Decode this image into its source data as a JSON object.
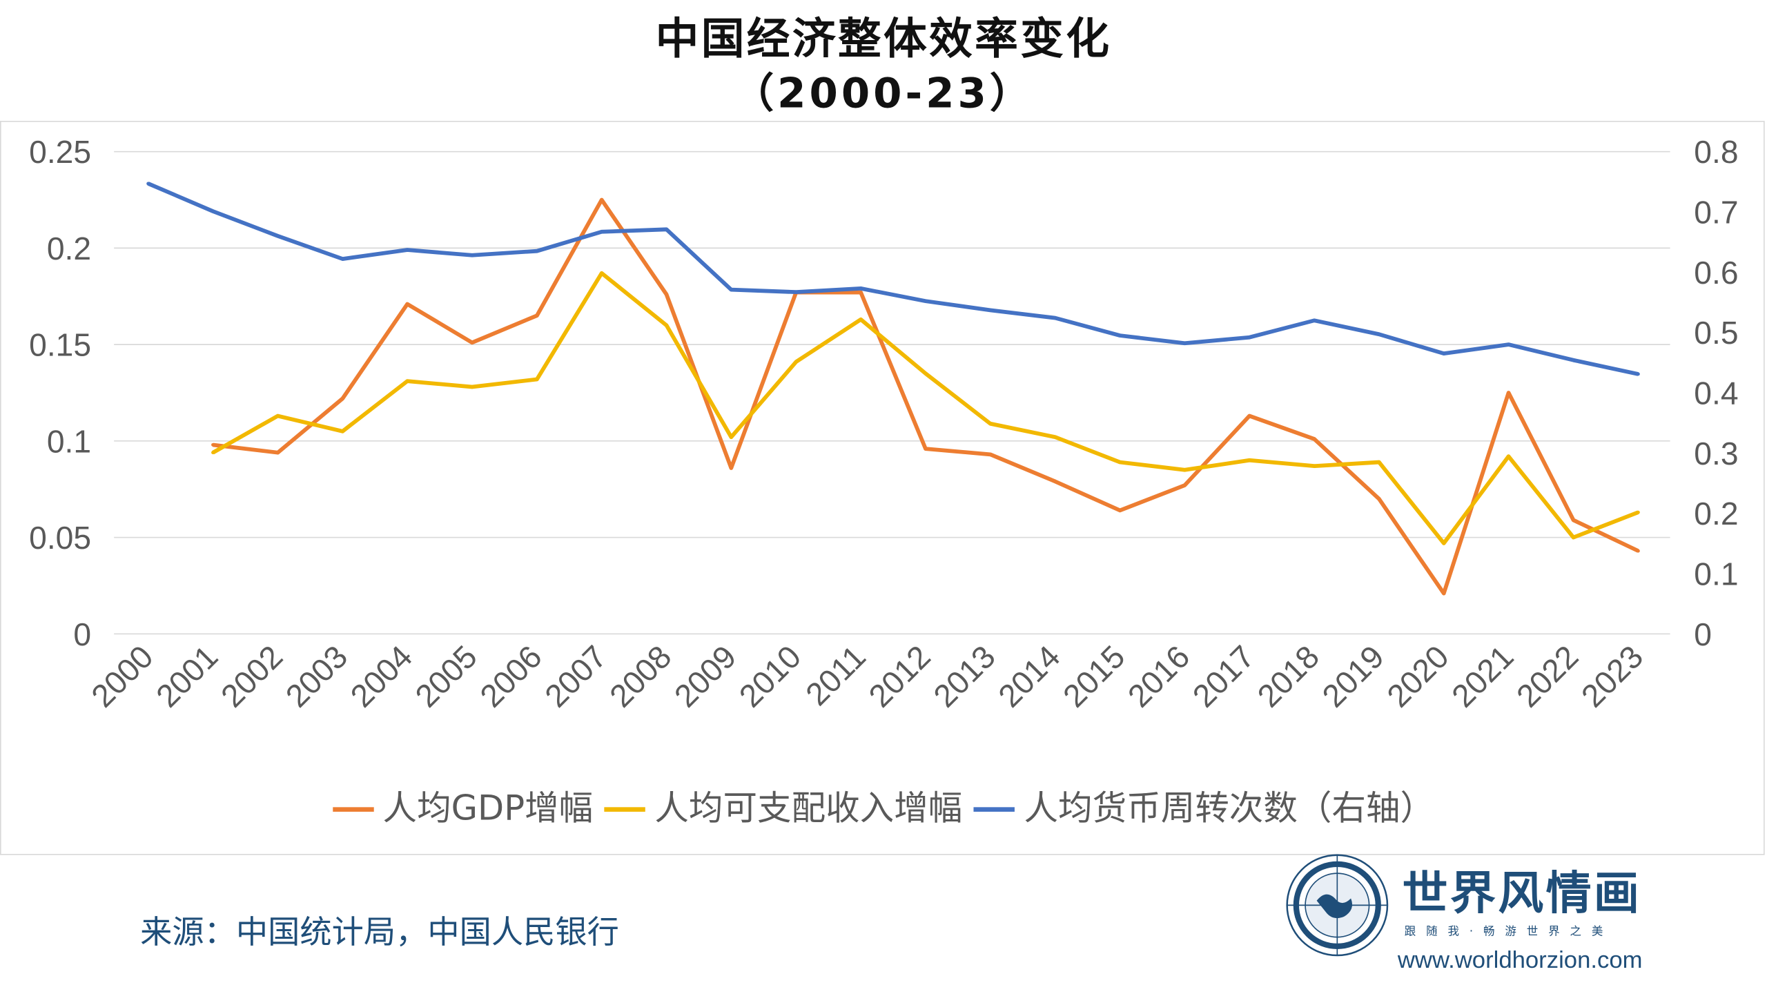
{
  "chart_data": {
    "type": "line",
    "title": "中国经济整体效率变化",
    "subtitle": "（2000-23）",
    "categories": [
      "2000",
      "2001",
      "2002",
      "2003",
      "2004",
      "2005",
      "2006",
      "2007",
      "2008",
      "2009",
      "2010",
      "2011",
      "2012",
      "2013",
      "2014",
      "2015",
      "2016",
      "2017",
      "2018",
      "2019",
      "2020",
      "2021",
      "2022",
      "2023"
    ],
    "y_left": {
      "range": [
        0,
        0.25
      ],
      "ticks": [
        "0",
        "0.05",
        "0.1",
        "0.15",
        "0.2",
        "0.25"
      ]
    },
    "y_right": {
      "range": [
        0,
        0.8
      ],
      "ticks": [
        "0",
        "0.1",
        "0.2",
        "0.3",
        "0.4",
        "0.5",
        "0.6",
        "0.7",
        "0.8"
      ]
    },
    "grid": true,
    "legend_position": "bottom",
    "series": [
      {
        "name": "人均GDP增幅",
        "axis": "left",
        "color": "#ed7d31",
        "values": [
          null,
          0.098,
          0.094,
          0.122,
          0.171,
          0.151,
          0.165,
          0.225,
          0.176,
          0.086,
          0.177,
          0.177,
          0.096,
          0.093,
          0.079,
          0.064,
          0.077,
          0.113,
          0.101,
          0.07,
          0.021,
          0.125,
          0.059,
          0.043
        ]
      },
      {
        "name": "人均可支配收入增幅",
        "axis": "left",
        "color": "#f2b800",
        "values": [
          null,
          0.094,
          0.113,
          0.105,
          0.131,
          0.128,
          0.132,
          0.187,
          0.16,
          0.102,
          0.141,
          0.163,
          0.135,
          0.109,
          0.102,
          0.089,
          0.085,
          0.09,
          0.087,
          0.089,
          0.047,
          0.092,
          0.05,
          0.063
        ]
      },
      {
        "name": "人均货币周转次数（右轴）",
        "axis": "right",
        "color": "#4472c4",
        "values": [
          0.747,
          0.701,
          0.66,
          0.622,
          0.637,
          0.628,
          0.635,
          0.667,
          0.671,
          0.571,
          0.567,
          0.573,
          0.552,
          0.537,
          0.524,
          0.495,
          0.482,
          0.492,
          0.52,
          0.497,
          0.465,
          0.48,
          0.454,
          0.431
        ]
      }
    ]
  },
  "footer": {
    "source": "来源：中国统计局，中国人民银行",
    "logo_name": "世界风情画",
    "tagline": "跟随我·畅游世界之美",
    "url": "www.worldhorzion.com"
  }
}
